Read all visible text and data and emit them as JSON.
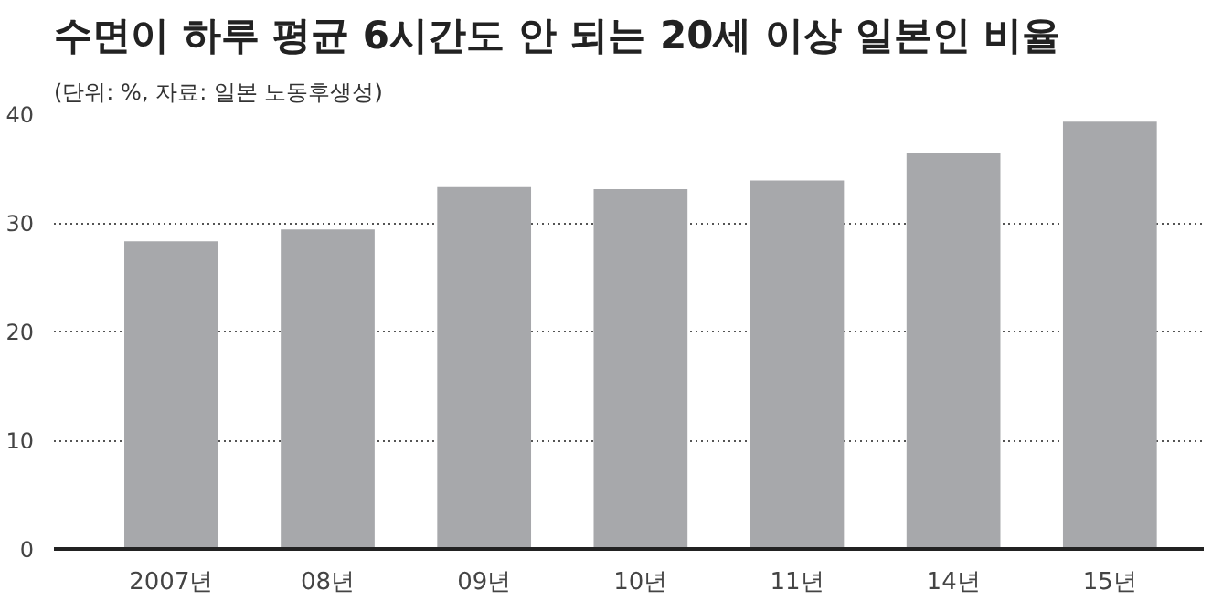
{
  "chart_data": {
    "type": "bar",
    "title": "수면이 하루 평균 6시간도 안 되는 20세 이상 일본인 비율",
    "subtitle": "(단위: %, 자료: 일본 노동후생성)",
    "categories": [
      "2007년",
      "08년",
      "09년",
      "10년",
      "11년",
      "14년",
      "15년"
    ],
    "values": [
      28.3,
      29.4,
      33.3,
      33.1,
      33.9,
      36.4,
      39.3
    ],
    "color": "#a7a8ab",
    "ylim": [
      0,
      40
    ],
    "yticks": [
      0,
      10,
      20,
      30,
      40
    ],
    "grid": "y",
    "line_style": "dotted"
  }
}
